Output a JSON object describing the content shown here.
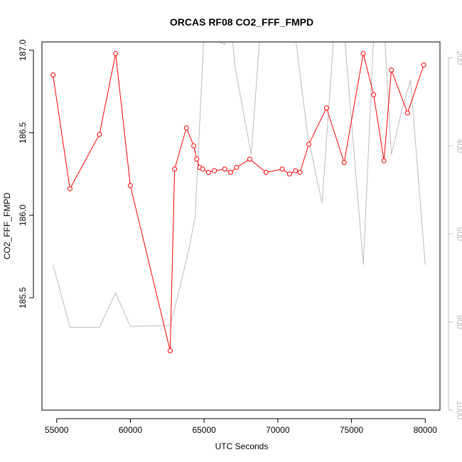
{
  "chart_data": {
    "type": "line",
    "title": "ORCAS RF08 CO2_FFF_FMPD",
    "xlabel": "UTC Seconds",
    "ylabel": "CO2_FFF_FMPD",
    "xlim": [
      54000,
      81000
    ],
    "ylim": [
      184.82,
      187.05
    ],
    "x_ticks": [
      55000,
      60000,
      65000,
      70000,
      75000,
      80000
    ],
    "x_tick_labels": [
      "55000",
      "60000",
      "65000",
      "70000",
      "75000",
      "80000"
    ],
    "y_ticks": [
      185.5,
      186.0,
      186.5,
      187.0
    ],
    "y_tick_labels": [
      "185.5",
      "186.0",
      "186.5",
      "187.0"
    ],
    "y2_lim": [
      1000,
      164
    ],
    "y2_ticks": [
      200,
      400,
      600,
      800,
      1000
    ],
    "y2_tick_labels": [
      "200",
      "400",
      "600",
      "800",
      "1000"
    ],
    "grid": false,
    "colors": {
      "primary": "#ff0000",
      "secondary": "#bdbdbd",
      "axis": "#000000"
    },
    "series": [
      {
        "axis": "left",
        "marker": "open-circle",
        "points": [
          [
            54750,
            186.85
          ],
          [
            55900,
            186.16
          ],
          [
            57900,
            186.49
          ],
          [
            59000,
            186.98
          ],
          [
            60000,
            186.18
          ],
          [
            62700,
            185.18
          ],
          [
            63000,
            186.28
          ],
          [
            63800,
            186.53
          ],
          [
            64300,
            186.42
          ],
          [
            64500,
            186.34
          ],
          [
            64700,
            186.29
          ],
          [
            64900,
            186.28
          ],
          [
            65300,
            186.26
          ],
          [
            65700,
            186.27
          ],
          [
            66400,
            186.28
          ],
          [
            66800,
            186.26
          ],
          [
            67200,
            186.29
          ],
          [
            68100,
            186.34
          ],
          [
            69200,
            186.26
          ],
          [
            70300,
            186.28
          ],
          [
            70800,
            186.25
          ],
          [
            71200,
            186.27
          ],
          [
            71500,
            186.26
          ],
          [
            72100,
            186.43
          ],
          [
            73300,
            186.65
          ],
          [
            74500,
            186.32
          ],
          [
            75800,
            186.98
          ],
          [
            76500,
            186.73
          ],
          [
            77200,
            186.33
          ],
          [
            77700,
            186.88
          ],
          [
            78800,
            186.62
          ],
          [
            79900,
            186.91
          ]
        ]
      },
      {
        "axis": "right",
        "points": [
          [
            54750,
            670
          ],
          [
            55900,
            812
          ],
          [
            57900,
            812
          ],
          [
            59000,
            734
          ],
          [
            60000,
            810
          ],
          [
            62700,
            808
          ],
          [
            63000,
            770
          ],
          [
            64000,
            630
          ],
          [
            64400,
            560
          ],
          [
            65000,
            140
          ],
          [
            65800,
            160
          ],
          [
            66400,
            170
          ],
          [
            66800,
            120
          ],
          [
            67100,
            220
          ],
          [
            68200,
            420
          ],
          [
            68800,
            140
          ],
          [
            70500,
            160
          ],
          [
            71000,
            100
          ],
          [
            72000,
            370
          ],
          [
            73000,
            530
          ],
          [
            73800,
            150
          ],
          [
            74500,
            140
          ],
          [
            75800,
            670
          ],
          [
            76500,
            150
          ],
          [
            77200,
            120
          ],
          [
            77700,
            420
          ],
          [
            78400,
            320
          ],
          [
            79000,
            250
          ],
          [
            80000,
            670
          ]
        ]
      }
    ]
  }
}
